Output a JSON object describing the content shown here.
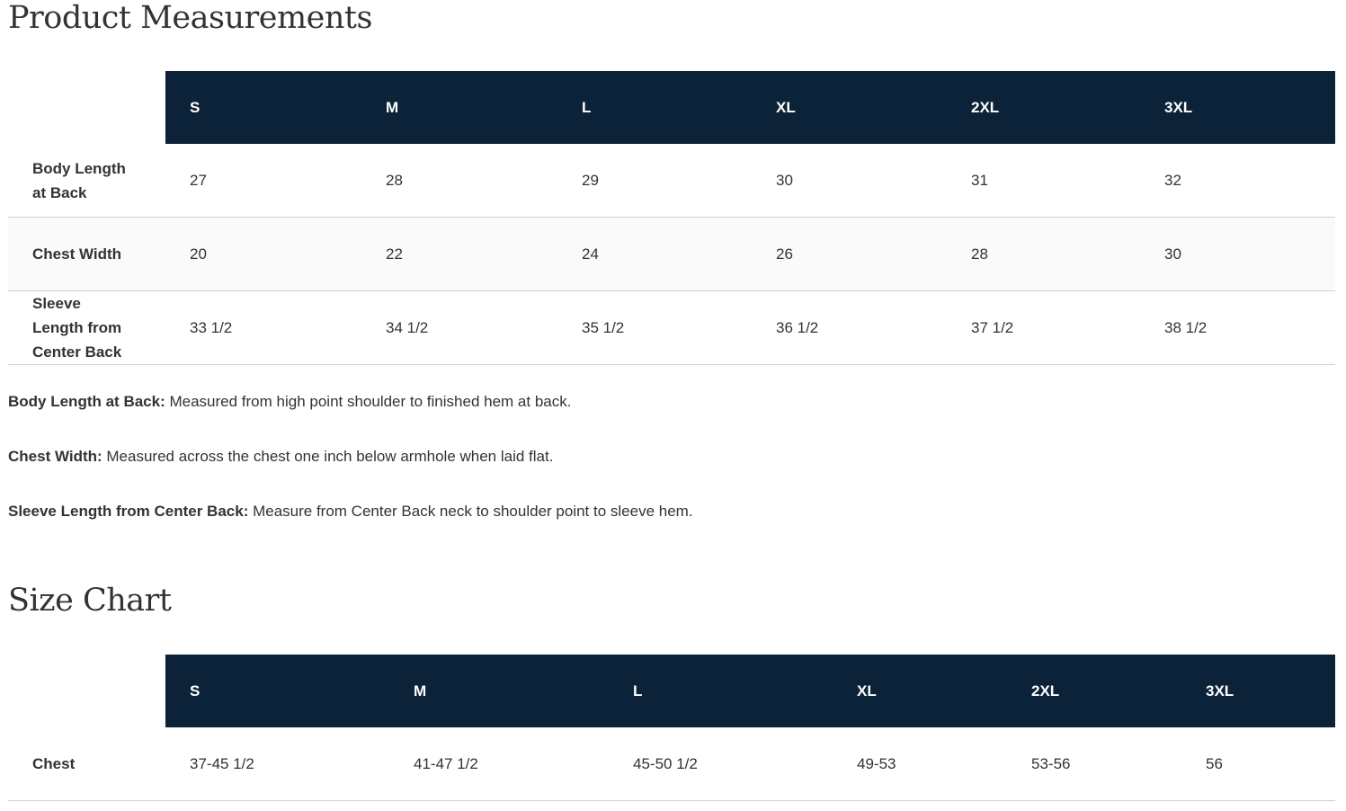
{
  "measurements": {
    "title": "Product Measurements",
    "sizes": [
      "S",
      "M",
      "L",
      "XL",
      "2XL",
      "3XL"
    ],
    "rows": [
      {
        "label": "Body Length at Back",
        "values": [
          "27",
          "28",
          "29",
          "30",
          "31",
          "32"
        ]
      },
      {
        "label": "Chest Width",
        "values": [
          "20",
          "22",
          "24",
          "26",
          "28",
          "30"
        ]
      },
      {
        "label": "Sleeve Length from Center Back",
        "values": [
          "33 1/2",
          "34 1/2",
          "35 1/2",
          "36 1/2",
          "37 1/2",
          "38 1/2"
        ]
      }
    ],
    "notes": [
      {
        "term": "Body Length at Back:",
        "text": " Measured from high point shoulder to finished hem at back."
      },
      {
        "term": "Chest Width:",
        "text": " Measured across the chest one inch below armhole when laid flat."
      },
      {
        "term": "Sleeve Length from Center Back:",
        "text": " Measure from Center Back neck to shoulder point to sleeve hem."
      }
    ]
  },
  "size_chart": {
    "title": "Size Chart",
    "sizes": [
      "S",
      "M",
      "L",
      "XL",
      "2XL",
      "3XL"
    ],
    "rows": [
      {
        "label": "Chest",
        "values": [
          "37-45 1/2",
          "41-47 1/2",
          "45-50 1/2",
          "49-53",
          "53-56",
          "56"
        ]
      }
    ]
  },
  "colors": {
    "header_bg": "#0c2238",
    "header_text": "#ffffff",
    "text": "#333333"
  }
}
